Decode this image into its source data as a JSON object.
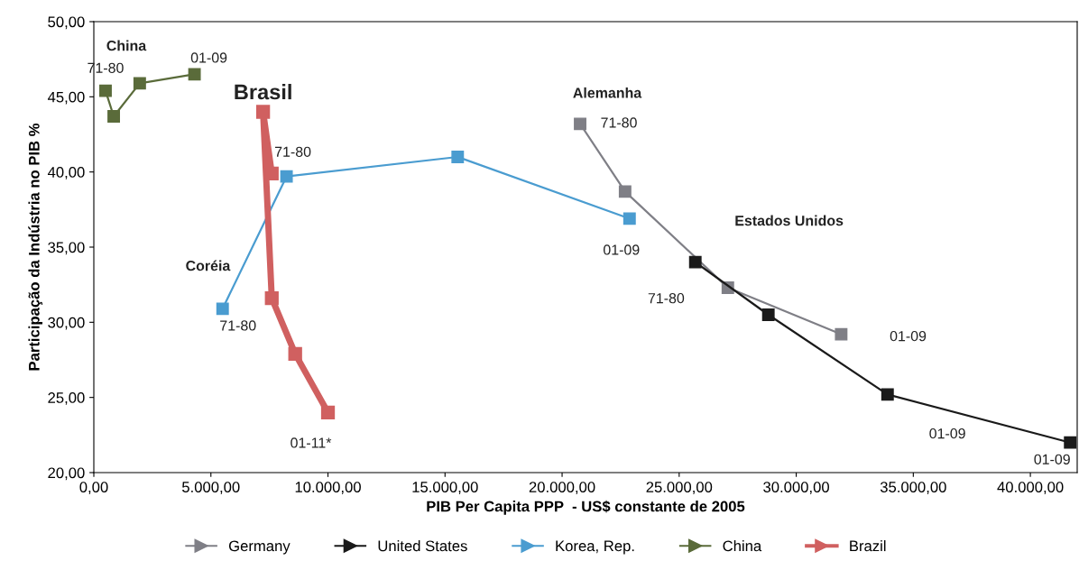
{
  "chart_data": {
    "type": "line",
    "xlabel": "PIB Per Capita PPP  - US$ constante de 2005",
    "ylabel": "Participação da Indústria no PIB %",
    "xlim": [
      0,
      42000
    ],
    "ylim": [
      20,
      50
    ],
    "xticks": [
      {
        "value": 0,
        "label": "0,00"
      },
      {
        "value": 5000,
        "label": "5.000,00"
      },
      {
        "value": 10000,
        "label": "10.000,00"
      },
      {
        "value": 15000,
        "label": "15.000,00"
      },
      {
        "value": 20000,
        "label": "20.000,00"
      },
      {
        "value": 25000,
        "label": "25.000,00"
      },
      {
        "value": 30000,
        "label": "30.000,00"
      },
      {
        "value": 35000,
        "label": "35.000,00"
      },
      {
        "value": 40000,
        "label": "40.000,00"
      }
    ],
    "yticks": [
      {
        "value": 20,
        "label": "20,00"
      },
      {
        "value": 25,
        "label": "25,00"
      },
      {
        "value": 30,
        "label": "30,00"
      },
      {
        "value": 35,
        "label": "35,00"
      },
      {
        "value": 40,
        "label": "40,00"
      },
      {
        "value": 45,
        "label": "45,00"
      },
      {
        "value": 50,
        "label": "50,00"
      }
    ],
    "grid": false,
    "legend": "bottom",
    "marker": "square",
    "line_style": "solid",
    "series": [
      {
        "name": "Germany",
        "color": "#7f7f86",
        "x": [
          20770,
          22690,
          27080,
          31920
        ],
        "values": [
          43.2,
          38.7,
          32.3,
          29.2
        ]
      },
      {
        "name": "United States",
        "color": "#1a1a1a",
        "x": [
          25690,
          28810,
          33900,
          41700
        ],
        "values": [
          34.0,
          30.5,
          25.2,
          22.0
        ]
      },
      {
        "name": "Korea, Rep.",
        "color": "#4a9cd0",
        "x": [
          5500,
          8230,
          15540,
          22880
        ],
        "values": [
          30.9,
          39.7,
          41.0,
          36.9
        ]
      },
      {
        "name": "China",
        "color": "#5a6b3a",
        "x": [
          500,
          850,
          1960,
          4300
        ],
        "values": [
          45.4,
          43.7,
          45.9,
          46.5
        ]
      },
      {
        "name": "Brazil",
        "color": "#d06060",
        "x": [
          7600,
          7230,
          7600,
          8600,
          10000
        ],
        "values": [
          39.9,
          44.0,
          31.6,
          27.9,
          24.0
        ]
      }
    ],
    "annotations": [
      {
        "text": "Brasil",
        "x": 7230,
        "y": 44.0
      },
      {
        "text": "Alemanha",
        "x": 20770,
        "y": 43.2
      },
      {
        "text": "71-80",
        "x": 500,
        "y": 45.4
      },
      {
        "text": "01-09",
        "x": 4300,
        "y": 46.5
      },
      {
        "text": "71-80",
        "x": 8230,
        "y": 39.7
      },
      {
        "text": "71-80",
        "x": 5500,
        "y": 30.9
      },
      {
        "text": "01-11*",
        "x": 10000,
        "y": 24.0
      },
      {
        "text": "71-80",
        "x": 20770,
        "y": 43.2
      },
      {
        "text": "01-09",
        "x": 22880,
        "y": 36.9
      },
      {
        "text": "01-09",
        "x": 41700,
        "y": 22.0
      },
      "China",
      "Coréia",
      "Estados Unidos",
      "71-80",
      "01-09",
      "01-09"
    ]
  }
}
